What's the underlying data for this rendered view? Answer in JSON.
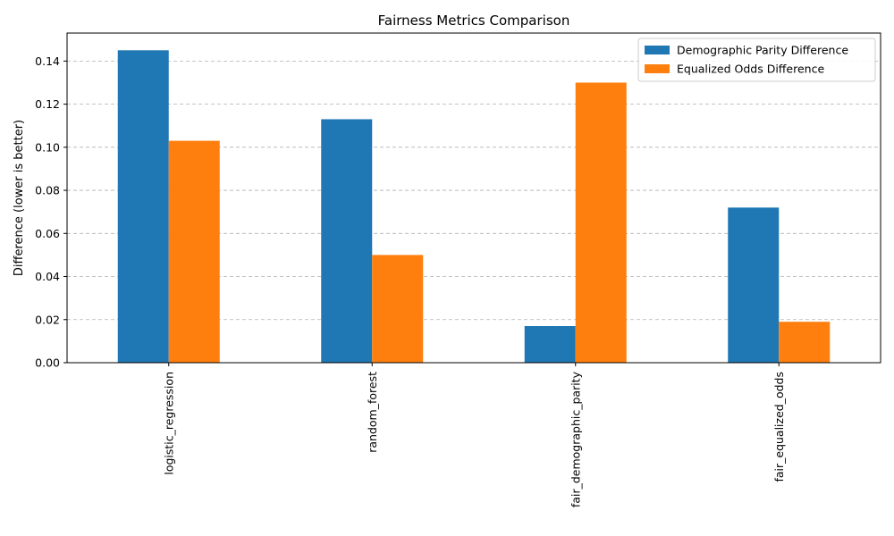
{
  "chart_data": {
    "type": "bar",
    "title": "Fairness Metrics Comparison",
    "xlabel": "",
    "ylabel": "Difference (lower is better)",
    "categories": [
      "logistic_regression",
      "random_forest",
      "fair_demographic_parity",
      "fair_equalized_odds"
    ],
    "series": [
      {
        "name": "Demographic Parity Difference",
        "color": "#1f77b4",
        "values": [
          0.145,
          0.113,
          0.017,
          0.072
        ]
      },
      {
        "name": "Equalized Odds Difference",
        "color": "#ff7f0e",
        "values": [
          0.103,
          0.05,
          0.13,
          0.019
        ]
      }
    ],
    "ylim": [
      0,
      0.153
    ],
    "yticks": [
      0.0,
      0.02,
      0.04,
      0.06,
      0.08,
      0.1,
      0.12,
      0.14
    ],
    "ytick_labels": [
      "0.00",
      "0.02",
      "0.04",
      "0.06",
      "0.08",
      "0.10",
      "0.12",
      "0.14"
    ],
    "grid": "y-dashed",
    "legend_position": "top-right"
  }
}
